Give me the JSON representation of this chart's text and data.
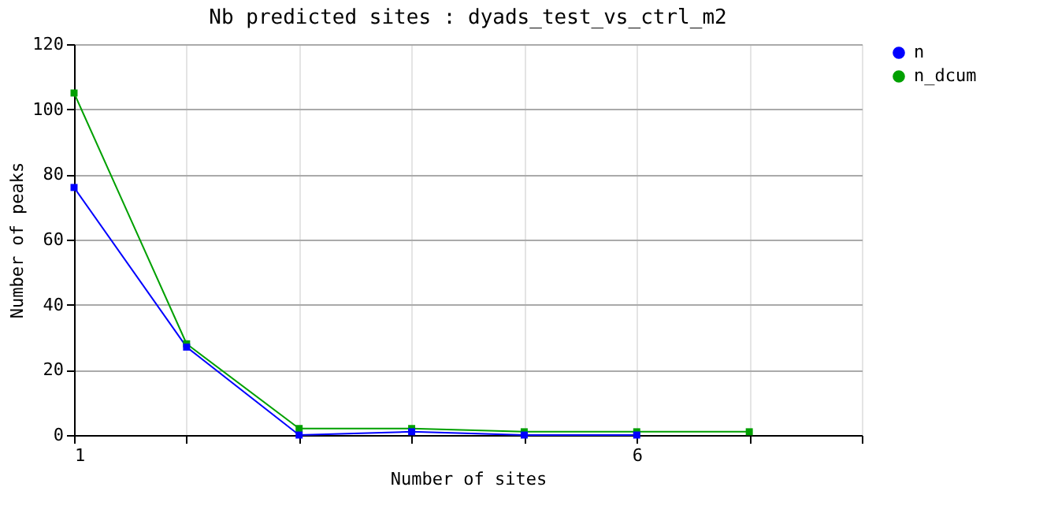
{
  "chart_data": {
    "type": "line",
    "title": "Nb predicted sites : dyads_test_vs_ctrl_m2",
    "xlabel": "Number of sites",
    "ylabel": "Number of peaks",
    "x": [
      1,
      2,
      3,
      4,
      5,
      6,
      7
    ],
    "series": [
      {
        "name": "n",
        "color": "#0000ff",
        "values": [
          76,
          27,
          0,
          1,
          0,
          0,
          null
        ]
      },
      {
        "name": "n_dcum",
        "color": "#00a000",
        "values": [
          105,
          28,
          2,
          2,
          1,
          1,
          1
        ]
      }
    ],
    "xlim": [
      1,
      8
    ],
    "xticks": [
      1,
      {
        "value": 2,
        "label": null
      },
      {
        "value": 3,
        "label": null
      },
      {
        "value": 4,
        "label": null
      },
      {
        "value": 5,
        "label": null
      },
      6,
      {
        "value": 7,
        "label": null
      },
      {
        "value": 8,
        "label": null
      }
    ],
    "ylim": [
      0,
      120
    ],
    "yticks": [
      0,
      20,
      40,
      60,
      80,
      100,
      120
    ],
    "grid": true,
    "legend": "top right",
    "marker": "square",
    "line_style": "solid"
  }
}
